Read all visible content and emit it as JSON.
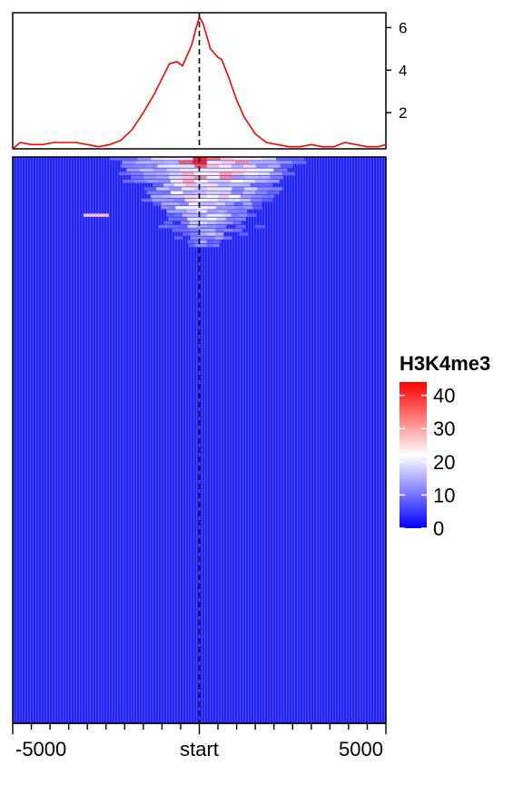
{
  "chart_data": [
    {
      "type": "line",
      "panel": "profile",
      "title": "",
      "xlabel": "",
      "ylabel": "",
      "xlim": [
        -5000,
        5000
      ],
      "ylim": [
        0.3,
        6.7
      ],
      "y_ticks": [
        2,
        4,
        6
      ],
      "y_tick_labels": [
        "2",
        "4",
        "6"
      ],
      "series": [
        {
          "color": "#ff0000",
          "x": [
            -5000,
            -4800,
            -4500,
            -4200,
            -3900,
            -3600,
            -3300,
            -3000,
            -2700,
            -2400,
            -2100,
            -1800,
            -1500,
            -1200,
            -1000,
            -800,
            -600,
            -450,
            -300,
            -200,
            -100,
            0,
            100,
            200,
            300,
            400,
            500,
            600,
            800,
            1000,
            1200,
            1500,
            1800,
            2100,
            2400,
            2700,
            3000,
            3300,
            3600,
            3900,
            4200,
            4500,
            4800,
            5000
          ],
          "y": [
            0.3,
            0.6,
            0.5,
            0.5,
            0.6,
            0.6,
            0.6,
            0.5,
            0.4,
            0.5,
            0.7,
            1.2,
            2.0,
            2.9,
            3.6,
            4.3,
            4.4,
            4.2,
            4.8,
            5.2,
            5.9,
            6.5,
            6.2,
            5.6,
            5.0,
            4.8,
            4.6,
            4.5,
            3.6,
            2.6,
            1.8,
            1.0,
            0.6,
            0.5,
            0.4,
            0.4,
            0.5,
            0.4,
            0.4,
            0.6,
            0.5,
            0.4,
            0.4,
            0.5
          ]
        }
      ],
      "vline": {
        "x": 0,
        "style": "dashed",
        "color": "#000000"
      }
    },
    {
      "type": "heatmap",
      "panel": "heatmap",
      "title": "",
      "x_ticks": [
        -5000,
        0,
        5000
      ],
      "x_tick_labels": [
        "-5000",
        "start",
        "5000"
      ],
      "xlim": [
        -5000,
        5000
      ],
      "legend": {
        "title": "H3K4me3",
        "ticks": [
          0,
          10,
          20,
          30,
          40
        ],
        "tick_labels": [
          "0",
          "10",
          "20",
          "30",
          "40"
        ],
        "range": [
          0,
          44
        ],
        "colors": [
          "#0000ff",
          "#ffffff",
          "#ff0000"
        ],
        "placement": "right"
      },
      "rows": 150,
      "signal_rows_fraction": 0.16,
      "peak_center": 200,
      "background_value": 3,
      "peak_value": 40,
      "vline": {
        "x": 0,
        "style": "dashed",
        "color": "#000000"
      }
    }
  ]
}
